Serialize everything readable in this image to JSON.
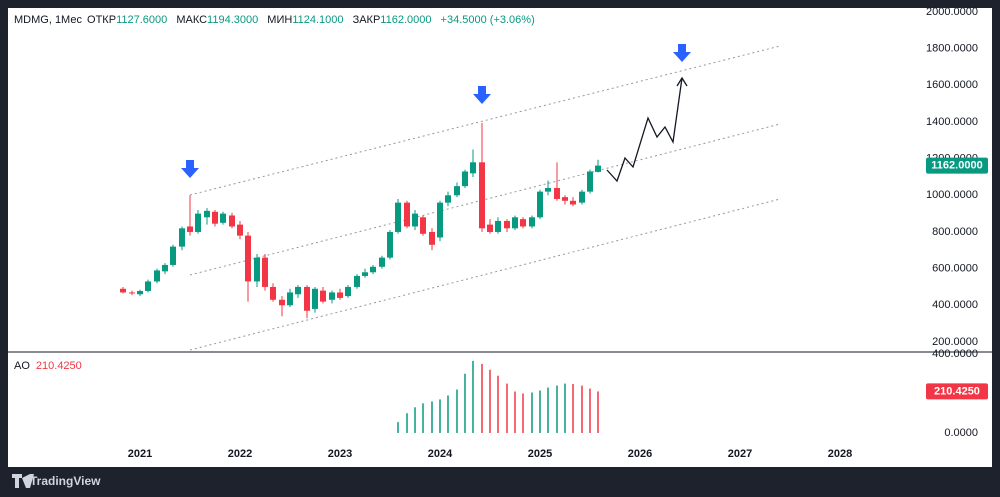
{
  "chart_data": [
    {
      "type": "candlestick",
      "name": "MDMG, 1Мес",
      "legend": [
        {
          "label": "ОТКР",
          "value": "1127.6000"
        },
        {
          "label": "МАКС",
          "value": "1194.3000"
        },
        {
          "label": "МИН",
          "value": "1124.1000"
        },
        {
          "label": "ЗАКР",
          "value": "1162.0000"
        }
      ],
      "change": "+34.5000 (+3.06%)",
      "x": [
        2020.83,
        2020.92,
        2021.0,
        2021.08,
        2021.17,
        2021.25,
        2021.33,
        2021.42,
        2021.5,
        2021.58,
        2021.67,
        2021.75,
        2021.83,
        2021.92,
        2022.0,
        2022.08,
        2022.17,
        2022.25,
        2022.33,
        2022.42,
        2022.5,
        2022.58,
        2022.67,
        2022.75,
        2022.83,
        2022.92,
        2023.0,
        2023.08,
        2023.17,
        2023.25,
        2023.33,
        2023.42,
        2023.5,
        2023.58,
        2023.67,
        2023.75,
        2023.83,
        2023.92,
        2024.0,
        2024.08,
        2024.17,
        2024.25,
        2024.33,
        2024.42,
        2024.5,
        2024.58,
        2024.67,
        2024.75,
        2024.83,
        2024.92,
        2025.0,
        2025.08,
        2025.17,
        2025.25,
        2025.33,
        2025.42,
        2025.5,
        2025.58
      ],
      "open": [
        490,
        470,
        460,
        478,
        530,
        585,
        620,
        720,
        830,
        800,
        880,
        910,
        850,
        890,
        840,
        780,
        530,
        660,
        500,
        430,
        400,
        460,
        500,
        380,
        480,
        430,
        470,
        450,
        500,
        560,
        580,
        610,
        660,
        800,
        960,
        830,
        880,
        800,
        770,
        960,
        1000,
        1050,
        1120,
        1180,
        840,
        800,
        860,
        820,
        870,
        830,
        880,
        1020,
        1040,
        990,
        970,
        960,
        1020,
        1127.6
      ],
      "high": [
        500,
        480,
        485,
        540,
        600,
        630,
        730,
        830,
        1000,
        920,
        930,
        920,
        910,
        905,
        860,
        800,
        680,
        680,
        520,
        450,
        490,
        510,
        510,
        500,
        500,
        480,
        490,
        510,
        570,
        600,
        620,
        670,
        810,
        980,
        970,
        920,
        890,
        820,
        970,
        1020,
        1070,
        1140,
        1250,
        1395,
        870,
        880,
        870,
        890,
        880,
        890,
        1030,
        1080,
        1180,
        1000,
        990,
        1030,
        1140,
        1194.3
      ],
      "low": [
        465,
        455,
        450,
        470,
        520,
        570,
        610,
        700,
        780,
        790,
        840,
        830,
        840,
        820,
        760,
        420,
        500,
        480,
        420,
        340,
        390,
        440,
        330,
        360,
        410,
        410,
        430,
        440,
        490,
        550,
        570,
        600,
        650,
        790,
        820,
        810,
        780,
        700,
        750,
        940,
        990,
        1040,
        1100,
        800,
        790,
        790,
        800,
        810,
        820,
        820,
        870,
        1000,
        970,
        950,
        940,
        950,
        1010,
        1124.1
      ],
      "close": [
        470,
        465,
        478,
        530,
        590,
        620,
        720,
        820,
        800,
        900,
        915,
        845,
        900,
        830,
        780,
        530,
        660,
        500,
        430,
        400,
        470,
        500,
        370,
        490,
        420,
        470,
        440,
        500,
        560,
        580,
        610,
        660,
        800,
        960,
        830,
        900,
        790,
        730,
        960,
        1000,
        1050,
        1130,
        1180,
        820,
        800,
        860,
        820,
        880,
        830,
        880,
        1020,
        1040,
        980,
        970,
        950,
        1020,
        1130,
        1162
      ],
      "last_label": "1162.0000",
      "up_color": "#089981",
      "down_color": "#f23645",
      "xlim": [
        2019.68,
        2028.78
      ],
      "xticks": [
        2021,
        2022,
        2023,
        2024,
        2025,
        2026,
        2027,
        2028
      ],
      "ylim": [
        145,
        2022
      ],
      "yticks": [
        {
          "value": 200,
          "label": "200.0000"
        },
        {
          "value": 400,
          "label": "400.0000"
        },
        {
          "value": 600,
          "label": "600.0000"
        },
        {
          "value": 800,
          "label": "800.0000"
        },
        {
          "value": 1000,
          "label": "1000.0000"
        },
        {
          "value": 1200,
          "label": "1200.0000"
        },
        {
          "value": 1400,
          "label": "1400.0000"
        },
        {
          "value": 1600,
          "label": "1600.0000"
        },
        {
          "value": 1800,
          "label": "1800.0000"
        },
        {
          "value": 2000,
          "label": "2000.0000"
        }
      ]
    },
    {
      "type": "histogram",
      "name": "AO",
      "values": [
        null,
        null,
        null,
        null,
        null,
        null,
        null,
        null,
        null,
        null,
        null,
        null,
        null,
        null,
        null,
        null,
        null,
        null,
        null,
        null,
        null,
        null,
        null,
        null,
        null,
        null,
        null,
        null,
        null,
        null,
        null,
        null,
        null,
        55,
        100,
        130,
        150,
        160,
        170,
        190,
        220,
        300,
        365,
        350,
        320,
        290,
        250,
        210,
        200,
        205,
        215,
        230,
        240,
        250,
        248,
        240,
        225,
        210.425
      ],
      "value_label": "210.4250",
      "up_color": "#089981",
      "down_color": "#f23645",
      "ylim": [
        -66,
        410
      ],
      "yticks": [
        {
          "value": 0,
          "label": "0.0000"
        },
        {
          "value": 400,
          "label": "400.0000"
        }
      ]
    }
  ],
  "footer": {
    "brand": "TradingView"
  }
}
